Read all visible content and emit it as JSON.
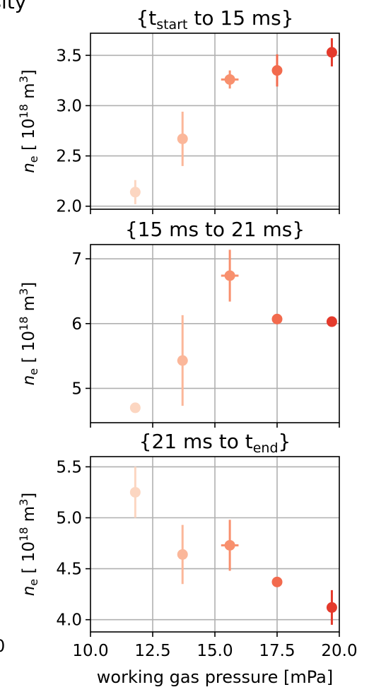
{
  "figure": {
    "cropped_title_fragment": "d density",
    "cropped_left_tick": "0",
    "xlabel": "working gas pressure [mPa]"
  },
  "chart_data": [
    {
      "type": "scatter",
      "title": "{t_start to 15 ms}",
      "title_parts": {
        "prefix": "{t",
        "sub": "start",
        "suffix": " to 15 ms}"
      },
      "xlabel": "",
      "ylabel": "n_e [10^18 m^3]",
      "xlim": [
        10.0,
        20.0
      ],
      "ylim": [
        1.97,
        3.72
      ],
      "xticks": [
        10.0,
        12.5,
        15.0,
        17.5,
        20.0
      ],
      "yticks": [
        2.0,
        2.5,
        3.0,
        3.5
      ],
      "ytick_labels": [
        "2.0",
        "2.5",
        "3.0",
        "3.5"
      ],
      "grid": true,
      "points": [
        {
          "x": 11.8,
          "y": 2.14,
          "yerr": 0.12,
          "xerr": 0,
          "color": "#fcd6c1"
        },
        {
          "x": 13.7,
          "y": 2.67,
          "yerr": 0.27,
          "xerr": 0,
          "color": "#fbb79a"
        },
        {
          "x": 15.6,
          "y": 3.26,
          "yerr": 0.09,
          "xerr": 0.35,
          "color": "#f8906e"
        },
        {
          "x": 17.5,
          "y": 3.35,
          "yerr": 0.16,
          "xerr": 0,
          "color": "#f26a4d"
        },
        {
          "x": 19.7,
          "y": 3.53,
          "yerr": 0.14,
          "xerr": 0,
          "color": "#e43a2c"
        }
      ]
    },
    {
      "type": "scatter",
      "title": "{15 ms to 21 ms}",
      "title_parts": {
        "prefix": "{15 ms to 21 ms}",
        "sub": "",
        "suffix": ""
      },
      "xlabel": "",
      "ylabel": "n_e [10^18 m^3]",
      "xlim": [
        10.0,
        20.0
      ],
      "ylim": [
        4.47,
        7.22
      ],
      "xticks": [
        10.0,
        12.5,
        15.0,
        17.5,
        20.0
      ],
      "yticks": [
        5,
        6,
        7
      ],
      "ytick_labels": [
        "5",
        "6",
        "7"
      ],
      "grid": true,
      "points": [
        {
          "x": 11.8,
          "y": 4.7,
          "yerr": 0.02,
          "xerr": 0,
          "color": "#fcd6c1"
        },
        {
          "x": 13.7,
          "y": 5.43,
          "yerr": 0.7,
          "xerr": 0,
          "color": "#fbb79a"
        },
        {
          "x": 15.6,
          "y": 6.74,
          "yerr": 0.4,
          "xerr": 0.35,
          "color": "#f8906e"
        },
        {
          "x": 17.5,
          "y": 6.07,
          "yerr": 0.06,
          "xerr": 0,
          "color": "#f26a4d"
        },
        {
          "x": 19.7,
          "y": 6.03,
          "yerr": 0.08,
          "xerr": 0,
          "color": "#e43a2c"
        }
      ]
    },
    {
      "type": "scatter",
      "title": "{21 ms to t_end}",
      "title_parts": {
        "prefix": "{21 ms to t",
        "sub": "end",
        "suffix": "}"
      },
      "xlabel": "working gas pressure [mPa]",
      "ylabel": "n_e [10^18 m^3]",
      "xlim": [
        10.0,
        20.0
      ],
      "ylim": [
        3.88,
        5.6
      ],
      "xticks": [
        10.0,
        12.5,
        15.0,
        17.5,
        20.0
      ],
      "xtick_labels": [
        "10.0",
        "12.5",
        "15.0",
        "17.5",
        "20.0"
      ],
      "yticks": [
        4.0,
        4.5,
        5.0,
        5.5
      ],
      "ytick_labels": [
        "4.0",
        "4.5",
        "5.0",
        "5.5"
      ],
      "grid": true,
      "points": [
        {
          "x": 11.8,
          "y": 5.25,
          "yerr": 0.25,
          "xerr": 0,
          "color": "#fcd6c1"
        },
        {
          "x": 13.7,
          "y": 4.64,
          "yerr": 0.29,
          "xerr": 0,
          "color": "#fbb79a"
        },
        {
          "x": 15.6,
          "y": 4.73,
          "yerr": 0.25,
          "xerr": 0.35,
          "color": "#f8906e"
        },
        {
          "x": 17.5,
          "y": 4.37,
          "yerr": 0.02,
          "xerr": 0,
          "color": "#f26a4d"
        },
        {
          "x": 19.7,
          "y": 4.12,
          "yerr": 0.17,
          "xerr": 0,
          "color": "#e43a2c"
        }
      ]
    }
  ]
}
